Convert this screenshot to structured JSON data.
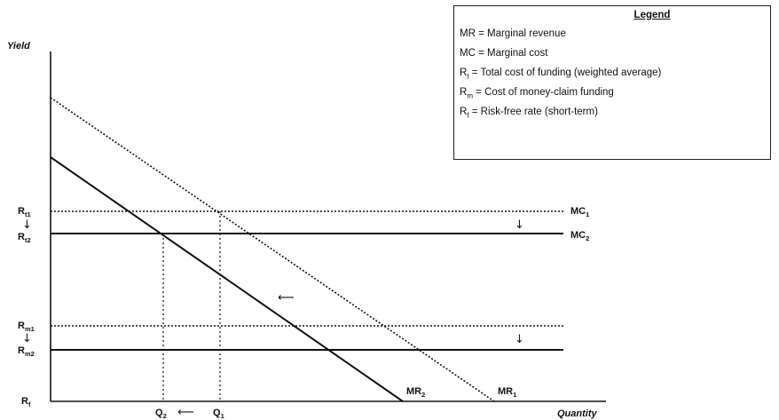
{
  "axes": {
    "y_title": "Yield",
    "x_title": "Quantity"
  },
  "legend": {
    "title": "Legend",
    "items": [
      {
        "abbr": "MR",
        "sub": "",
        "text": " = Marginal revenue"
      },
      {
        "abbr": "MC",
        "sub": "",
        "text": " = Marginal cost"
      },
      {
        "abbr": "R",
        "sub": "t",
        "text": " = Total cost of funding (weighted average)"
      },
      {
        "abbr": "R",
        "sub": "m",
        "text": " = Cost of money-claim funding"
      },
      {
        "abbr": "R",
        "sub": "f",
        "text": " = Risk-free rate (short-term)"
      }
    ]
  },
  "y_labels": {
    "rt1": {
      "base": "R",
      "sub": "t1"
    },
    "rt2": {
      "base": "R",
      "sub": "t2"
    },
    "rm1": {
      "base": "R",
      "sub": "m1"
    },
    "rm2": {
      "base": "R",
      "sub": "m2"
    },
    "rf": {
      "base": "R",
      "sub": "f"
    }
  },
  "x_labels": {
    "q2": {
      "base": "Q",
      "sub": "2"
    },
    "q1": {
      "base": "Q",
      "sub": "1"
    }
  },
  "line_labels": {
    "mc1": {
      "base": "MC",
      "sub": "1"
    },
    "mc2": {
      "base": "MC",
      "sub": "2"
    },
    "mr2": {
      "base": "MR",
      "sub": "2"
    },
    "mr1": {
      "base": "MR",
      "sub": "1"
    }
  },
  "glyphs": {
    "down_arrow": "↓",
    "left_arrow": "⟵",
    "left_arrow_short": "←"
  }
}
